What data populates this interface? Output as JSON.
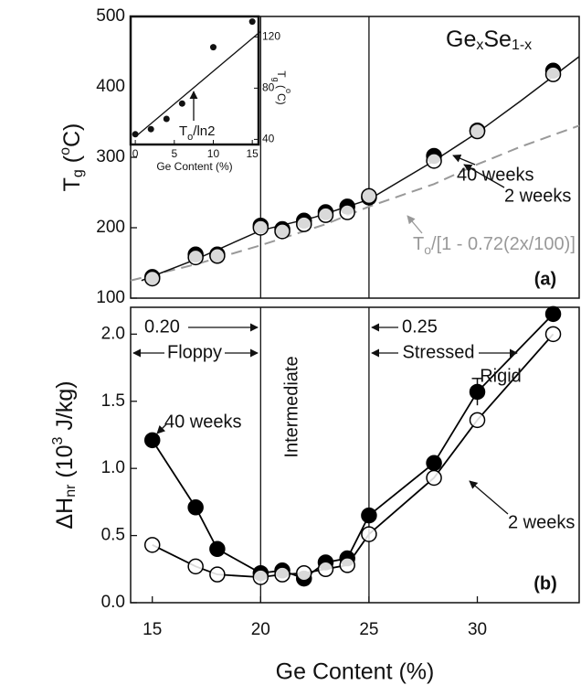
{
  "chart_data": [
    {
      "type": "scatter",
      "panel_label": "(a)",
      "title": [
        "Ge",
        "x",
        "Se",
        "1-x"
      ],
      "ylabel": [
        "T",
        "g",
        " (",
        "o",
        "C)"
      ],
      "xlim": [
        14,
        34.7
      ],
      "ylim": [
        100,
        500
      ],
      "yticks": [
        100,
        200,
        300,
        400,
        500
      ],
      "vlines": [
        20,
        25
      ],
      "x": [
        15,
        17,
        18,
        20,
        21,
        22,
        23,
        24,
        25,
        28,
        30,
        33.5
      ],
      "series": [
        {
          "name": "40 weeks",
          "marker": "filled",
          "color": "#000000",
          "values": [
            130,
            162,
            162,
            203,
            198,
            210,
            222,
            230,
            243,
            302,
            338,
            423
          ]
        },
        {
          "name": "2 weeks",
          "marker": "open",
          "color": "#000000",
          "values": [
            128,
            158,
            160,
            200,
            195,
            205,
            218,
            222,
            245,
            295,
            337,
            418
          ]
        }
      ],
      "fit": {
        "x": [
          14.5,
          17,
          20,
          22.5,
          25,
          28,
          30,
          32,
          34.7
        ],
        "values": [
          125,
          155,
          196,
          215,
          240,
          295,
          335,
          380,
          443
        ]
      },
      "model": {
        "label": [
          "T",
          "o",
          "/[1 - 0.72(2x/100)]"
        ],
        "color": "#999999",
        "x": [
          14,
          17,
          20,
          23,
          25,
          28,
          30,
          32,
          34.7
        ],
        "values": [
          125,
          148,
          175,
          205,
          230,
          262,
          290,
          315,
          345
        ]
      }
    },
    {
      "type": "line",
      "panel_label": "(b)",
      "ylabel": [
        "ΔH",
        "nr",
        " (10",
        "3",
        " J/kg)"
      ],
      "xlabel": "Ge Content (%)",
      "xlim": [
        14,
        34.7
      ],
      "ylim": [
        0,
        2.2
      ],
      "xticks": [
        15,
        20,
        25,
        30
      ],
      "yticks": [
        {
          "value": 0,
          "label": "0.0"
        },
        0.5,
        {
          "value": 1,
          "label": "1.0"
        },
        1.5,
        {
          "value": 2,
          "label": "2.0"
        }
      ],
      "vlines": [
        20,
        25
      ],
      "x": [
        15,
        17,
        18,
        20,
        21,
        22,
        23,
        24,
        25,
        28,
        30,
        33.5
      ],
      "series": [
        {
          "name": "40 weeks",
          "marker": "filled",
          "color": "#000000",
          "values": [
            1.21,
            0.71,
            0.4,
            0.22,
            0.24,
            0.18,
            0.3,
            0.33,
            0.65,
            1.04,
            1.57,
            2.15
          ],
          "errors": [
            null,
            null,
            null,
            null,
            null,
            null,
            null,
            null,
            null,
            null,
            0.1,
            null
          ]
        },
        {
          "name": "2 weeks",
          "marker": "open",
          "color": "#000000",
          "values": [
            0.43,
            0.27,
            0.21,
            0.19,
            0.21,
            0.22,
            0.25,
            0.28,
            0.51,
            0.93,
            1.36,
            2.0
          ]
        }
      ],
      "annotations": [
        "0.20",
        "0.25",
        "Floppy",
        "Intermediate",
        "Stressed",
        "Rigid"
      ]
    },
    {
      "type": "scatter",
      "xlabel": "Ge Content (%)",
      "ylabel": [
        "T",
        "g",
        " (",
        "o",
        "C)"
      ],
      "xlim": [
        -0.6,
        15.8
      ],
      "ylim": [
        36,
        136
      ],
      "xticks": [
        0,
        5,
        10,
        15
      ],
      "yticks": [
        40,
        80,
        120
      ],
      "x": [
        0,
        2,
        4,
        6,
        10,
        15
      ],
      "values": [
        44,
        48,
        56,
        68,
        112,
        132
      ],
      "fit": {
        "x": [
          0,
          16
        ],
        "values": [
          42,
          124
        ]
      },
      "annotation": [
        "T",
        "o",
        "/ln2"
      ]
    }
  ]
}
